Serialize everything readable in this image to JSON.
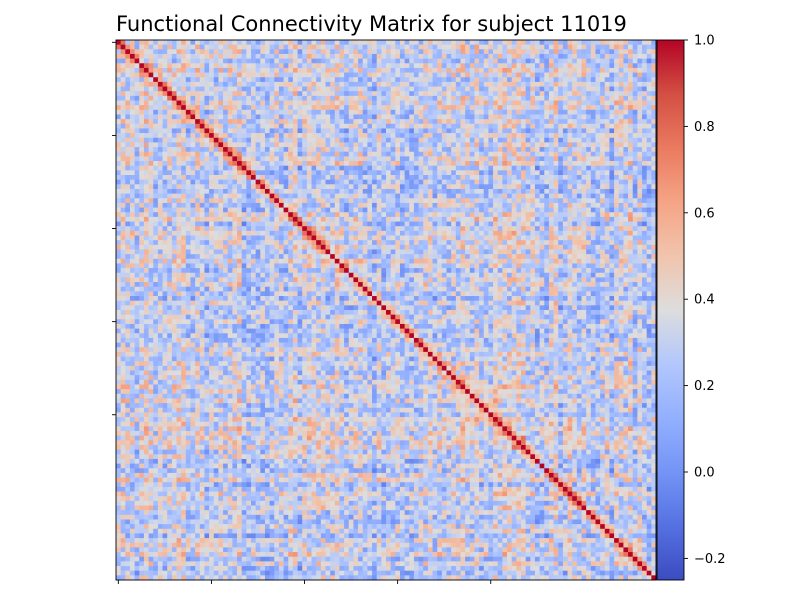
{
  "chart_data": {
    "type": "heatmap",
    "title": "Functional Connectivity Matrix for subject 11019",
    "xlabel": "",
    "ylabel": "",
    "matrix_size": 116,
    "value_range": [
      -0.25,
      1.0
    ],
    "diagonal_value": 1.0,
    "colormap": "coolwarm",
    "x_ticks": [
      0,
      20,
      40,
      60,
      80
    ],
    "x_tick_labels": [
      "",
      "",
      "",
      "",
      ""
    ],
    "y_ticks": [
      0,
      20,
      40,
      60,
      80
    ],
    "y_tick_labels": [
      "",
      "",
      "",
      "",
      ""
    ],
    "colorbar": {
      "position": "right",
      "ticks": [
        -0.2,
        0.0,
        0.2,
        0.4,
        0.6,
        0.8,
        1.0
      ],
      "tick_labels": [
        "−0.2",
        "0.0",
        "0.2",
        "0.4",
        "0.6",
        "0.8",
        "1.0"
      ]
    },
    "grid": false,
    "legend": "none"
  }
}
